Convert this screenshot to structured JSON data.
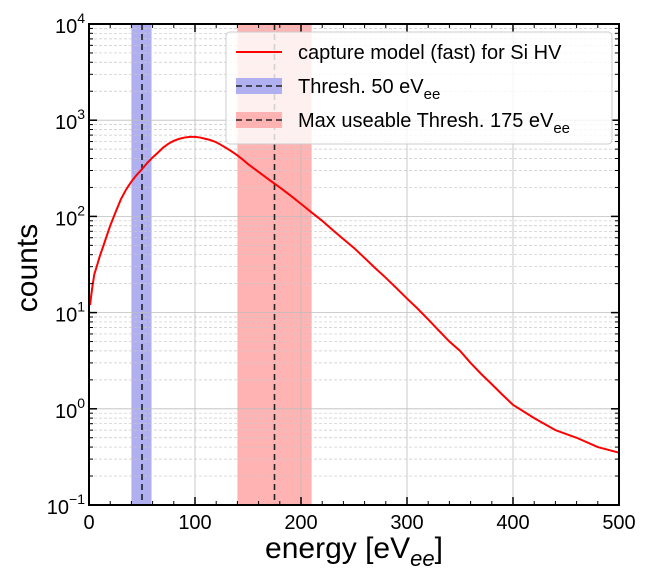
{
  "chart_data": {
    "type": "line",
    "xlabel": "energy [eV",
    "xlabel_sub": "ee",
    "xlabel_close": "]",
    "ylabel": "counts",
    "xlim": [
      0,
      500
    ],
    "ylim": [
      0.1,
      10000
    ],
    "yscale": "log",
    "grid": true,
    "legend_position": "top-right",
    "x_ticks": [
      0,
      100,
      200,
      300,
      400,
      500
    ],
    "x_tick_labels": [
      "0",
      "100",
      "200",
      "300",
      "400",
      "500"
    ],
    "y_ticks": [
      0.1,
      1,
      10,
      100,
      1000,
      10000
    ],
    "y_tick_labels": [
      {
        "base": "10",
        "exp": "−1"
      },
      {
        "base": "10",
        "exp": "0"
      },
      {
        "base": "10",
        "exp": "1"
      },
      {
        "base": "10",
        "exp": "2"
      },
      {
        "base": "10",
        "exp": "3"
      },
      {
        "base": "10",
        "exp": "4"
      }
    ],
    "series": [
      {
        "name": "capture model (fast) for Si HV",
        "color": "#ff0000",
        "x": [
          1,
          3,
          5,
          8,
          10,
          15,
          20,
          25,
          30,
          35,
          40,
          45,
          50,
          55,
          60,
          65,
          70,
          75,
          80,
          85,
          90,
          95,
          100,
          105,
          110,
          115,
          120,
          125,
          130,
          135,
          140,
          145,
          150,
          160,
          170,
          180,
          190,
          200,
          210,
          220,
          230,
          240,
          250,
          260,
          270,
          280,
          290,
          300,
          310,
          320,
          330,
          340,
          350,
          360,
          370,
          380,
          390,
          400,
          420,
          440,
          460,
          480,
          500
        ],
        "y": [
          12,
          18,
          25,
          32,
          38,
          55,
          80,
          110,
          150,
          190,
          230,
          270,
          310,
          360,
          410,
          460,
          520,
          570,
          610,
          640,
          660,
          670,
          670,
          660,
          640,
          620,
          590,
          550,
          510,
          470,
          430,
          390,
          350,
          290,
          240,
          200,
          165,
          135,
          110,
          90,
          72,
          58,
          47,
          37,
          29,
          23,
          18,
          14,
          11,
          8.5,
          6.5,
          5,
          4,
          3,
          2.3,
          1.8,
          1.4,
          1.1,
          0.8,
          0.6,
          0.5,
          0.4,
          0.35
        ]
      }
    ],
    "bands": [
      {
        "name": "Thresh. 50 eV",
        "name_sub": "ee",
        "center": 50,
        "range": [
          40,
          59
        ],
        "color": "#b0b0f0"
      },
      {
        "name": "Max useable Thresh. 175 eV",
        "name_sub": "ee",
        "center": 175,
        "range": [
          140,
          210
        ],
        "color": "#ffb3b3"
      }
    ]
  }
}
